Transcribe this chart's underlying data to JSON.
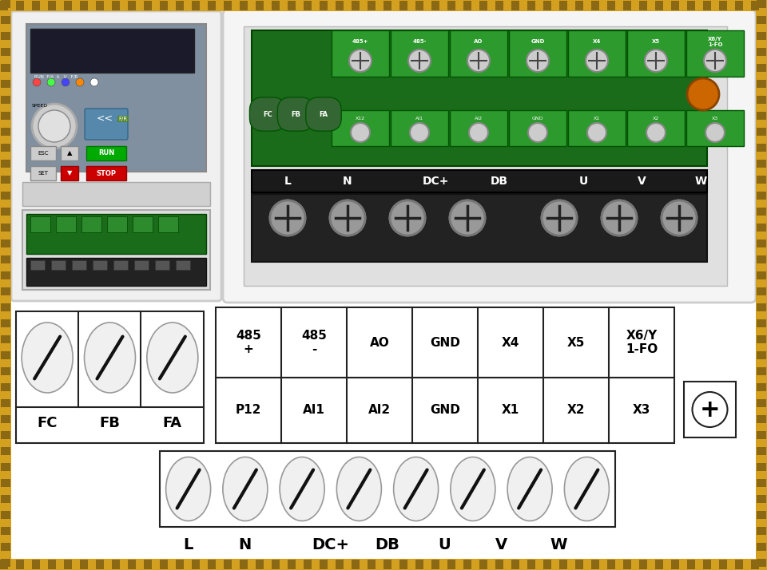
{
  "bg_color": "#ffffff",
  "border_color": "#DAA520",
  "top_row1_labels": [
    "485\n+",
    "485\n-",
    "AO",
    "GND",
    "X4",
    "X5",
    "X6/Y\n1-FO"
  ],
  "top_row2_labels": [
    "P12",
    "AI1",
    "AI2",
    "GND",
    "X1",
    "X2",
    "X3"
  ],
  "bottom_labels": [
    "L",
    "N",
    "DC+",
    "DB",
    "U",
    "V",
    "W"
  ],
  "fc_fb_fa_labels": [
    "FC",
    "FB",
    "FA"
  ],
  "text_color": "#000000",
  "box_line_color": "#222222",
  "ellipse_color": "#f0f0f0",
  "ellipse_line_color": "#999999",
  "slash_color": "#111111",
  "photo_bg_left": "#e8e8e8",
  "photo_bg_right": "#d8d8d8",
  "pcb_green": "#2a7a2a",
  "terminal_black": "#1a1a1a",
  "screw_gray": "#bbbbbb",
  "vfd_white": "#f2f2f2",
  "border_gold": "#D4A020",
  "border_dark": "#8B6914"
}
